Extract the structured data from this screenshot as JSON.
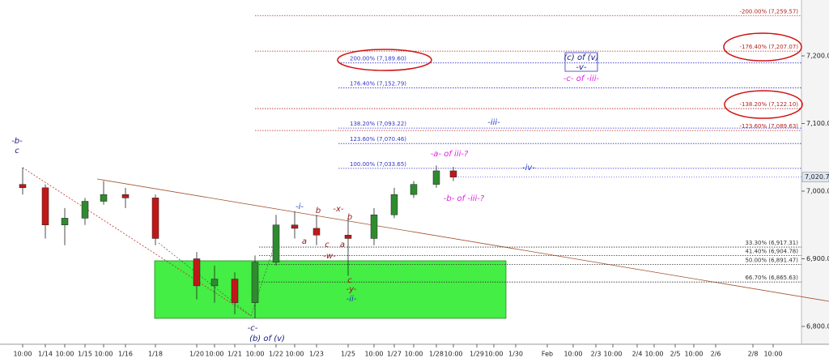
{
  "chart_data": {
    "type": "candlestick",
    "categories": [
      "10:00",
      "1/14",
      "10:00",
      "1/15",
      "10:00",
      "1/16",
      "1/18",
      "1/20",
      "10:00",
      "1/21",
      "10:00",
      "1/22",
      "10:00",
      "1/23",
      "1/25",
      "10:00",
      "1/27",
      "10:00",
      "1/28",
      "10:00",
      "1/29",
      "10:00",
      "1/30",
      "Feb",
      "10:00",
      "2/3",
      "10:00",
      "2/4",
      "10:00",
      "2/5",
      "10:00",
      "2/6",
      "2/8",
      "10:00"
    ],
    "open": [
      7010,
      7005,
      6950,
      6960,
      6985,
      6995,
      6990,
      6900,
      6860,
      6870,
      6835,
      6895,
      6950,
      6945,
      6935,
      6930,
      6965,
      6995,
      7010,
      7030,
      null,
      null,
      null,
      null,
      null,
      null,
      null,
      null,
      null,
      null,
      null,
      null,
      null,
      null
    ],
    "high": [
      7035,
      7010,
      6975,
      6990,
      7015,
      7005,
      6995,
      6910,
      6890,
      6880,
      6905,
      6965,
      6970,
      6965,
      6960,
      6975,
      7005,
      7015,
      7038,
      7036,
      null,
      null,
      null,
      null,
      null,
      null,
      null,
      null,
      null,
      null,
      null,
      null,
      null,
      null
    ],
    "low": [
      6995,
      6930,
      6920,
      6950,
      6980,
      6975,
      6920,
      6840,
      6835,
      6818,
      6812,
      6890,
      6930,
      6920,
      6875,
      6920,
      6960,
      6990,
      7005,
      7015,
      null,
      null,
      null,
      null,
      null,
      null,
      null,
      null,
      null,
      null,
      null,
      null,
      null,
      null
    ],
    "close": [
      7005,
      6950,
      6960,
      6985,
      6995,
      6990,
      6930,
      6860,
      6870,
      6835,
      6895,
      6950,
      6945,
      6935,
      6930,
      6965,
      6995,
      7010,
      7030,
      7020.75,
      null,
      null,
      null,
      null,
      null,
      null,
      null,
      null,
      null,
      null,
      null,
      null,
      null,
      null
    ],
    "up_color": "#2e8b2e",
    "down_color": "#c01818",
    "ylim": [
      6780,
      7280
    ],
    "yticks": [
      {
        "value": 6800,
        "label": "6,800.00"
      },
      {
        "value": 6900,
        "label": "6,900.00"
      },
      {
        "value": 7000,
        "label": "7,000.00"
      },
      {
        "value": 7100,
        "label": "7,100.00"
      },
      {
        "value": 7200,
        "label": "7,200.00"
      }
    ],
    "last_price": {
      "value": 7020.75,
      "label": "7,020.75"
    },
    "fib_levels": [
      {
        "label": "-200.00% (7,259.57)",
        "value": 7259.57,
        "color": "#b22222"
      },
      {
        "label": "-176.40% (7,207.07)",
        "value": 7207.07,
        "color": "#b22222"
      },
      {
        "label": "-138.20% (7,122.10)",
        "value": 7122.1,
        "color": "#b22222"
      },
      {
        "label": "-123.60% (7,089.63)",
        "value": 7089.63,
        "color": "#b22222"
      },
      {
        "label": "200.00% (7,189.60)",
        "value": 7189.6,
        "color": "#3333cc"
      },
      {
        "label": "176.40% (7,152.79)",
        "value": 7152.79,
        "color": "#3333cc"
      },
      {
        "label": "138.20% (7,093.22)",
        "value": 7093.22,
        "color": "#3333cc"
      },
      {
        "label": "123.60% (7,070.46)",
        "value": 7070.46,
        "color": "#3333cc"
      },
      {
        "label": "100.00% (7,033.65)",
        "value": 7033.65,
        "color": "#3333cc"
      },
      {
        "label": "33.30% (6,917.31)",
        "value": 6917.31,
        "color": "#333333"
      },
      {
        "label": "41.40% (6,904.78)",
        "value": 6904.78,
        "color": "#333333"
      },
      {
        "label": "50.00% (6,891.47)",
        "value": 6891.47,
        "color": "#333333"
      },
      {
        "label": "66.70% (6,865.63)",
        "value": 6865.63,
        "color": "#333333"
      }
    ],
    "annotations": [
      {
        "text": "-b-",
        "color": "#1a1a80"
      },
      {
        "text": "c",
        "color": "#1a1a80"
      },
      {
        "text": "-c-",
        "color": "#1a1a80"
      },
      {
        "text": "(b) of (v)",
        "color": "#1a1a80"
      },
      {
        "text": "-i-",
        "color": "#1f3fc4"
      },
      {
        "text": "a",
        "color": "#8b1a1a"
      },
      {
        "text": "b",
        "color": "#8b1a1a"
      },
      {
        "text": "c",
        "color": "#8b1a1a"
      },
      {
        "text": "a",
        "color": "#8b1a1a"
      },
      {
        "text": "-x-",
        "color": "#8b1a1a"
      },
      {
        "text": "b",
        "color": "#8b1a1a"
      },
      {
        "text": "-w-",
        "color": "#8b1a1a"
      },
      {
        "text": "c",
        "color": "#8b1a1a"
      },
      {
        "text": "-y-",
        "color": "#8b1a1a"
      },
      {
        "text": "-ii-",
        "color": "#1f3fc4"
      },
      {
        "text": "-a- of iii-?",
        "color": "#e020e0"
      },
      {
        "text": "-b- of -iii-?",
        "color": "#e020e0"
      },
      {
        "text": "-iii-",
        "color": "#1f3fc4"
      },
      {
        "text": "-iv-",
        "color": "#1f3fc4"
      },
      {
        "text": "(c) of (v)",
        "color": "#1a1a80"
      },
      {
        "text": "-v-",
        "color": "#1a1a80"
      },
      {
        "text": "-c- of -iii-",
        "color": "#e020e0"
      }
    ]
  }
}
